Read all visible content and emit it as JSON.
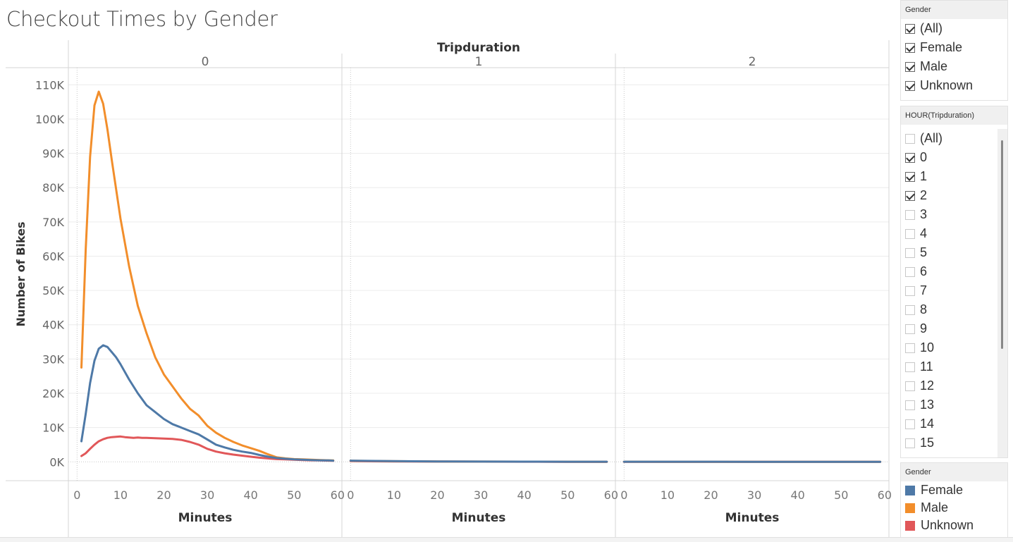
{
  "title": "Checkout Times by Gender",
  "filters": {
    "gender": {
      "header": "Gender",
      "items": [
        {
          "label": "(All)",
          "checked": true
        },
        {
          "label": "Female",
          "checked": true
        },
        {
          "label": "Male",
          "checked": true
        },
        {
          "label": "Unknown",
          "checked": true
        }
      ]
    },
    "hour": {
      "header": "HOUR(Tripduration)",
      "items": [
        {
          "label": "(All)",
          "checked": false
        },
        {
          "label": "0",
          "checked": true
        },
        {
          "label": "1",
          "checked": true
        },
        {
          "label": "2",
          "checked": true
        },
        {
          "label": "3",
          "checked": false
        },
        {
          "label": "4",
          "checked": false
        },
        {
          "label": "5",
          "checked": false
        },
        {
          "label": "6",
          "checked": false
        },
        {
          "label": "7",
          "checked": false
        },
        {
          "label": "8",
          "checked": false
        },
        {
          "label": "9",
          "checked": false
        },
        {
          "label": "10",
          "checked": false
        },
        {
          "label": "11",
          "checked": false
        },
        {
          "label": "12",
          "checked": false
        },
        {
          "label": "13",
          "checked": false
        },
        {
          "label": "14",
          "checked": false
        },
        {
          "label": "15",
          "checked": false
        }
      ]
    }
  },
  "legend": {
    "header": "Gender",
    "items": [
      {
        "label": "Female",
        "color": "#4e79a7"
      },
      {
        "label": "Male",
        "color": "#f28e2b"
      },
      {
        "label": "Unknown",
        "color": "#e15759"
      }
    ]
  },
  "chart_data": {
    "type": "line",
    "title": "Checkout Times by Gender",
    "column_header": "Tripduration",
    "panel_labels": [
      "0",
      "1",
      "2"
    ],
    "xlabel": "Minutes",
    "ylabel": "Number of Bikes",
    "x_ticks": [
      0,
      10,
      20,
      30,
      40,
      50,
      60
    ],
    "y_ticks": [
      0,
      10000,
      20000,
      30000,
      40000,
      50000,
      60000,
      70000,
      80000,
      90000,
      100000,
      110000
    ],
    "y_tick_labels": [
      "0K",
      "10K",
      "20K",
      "30K",
      "40K",
      "50K",
      "60K",
      "70K",
      "80K",
      "90K",
      "100K",
      "110K"
    ],
    "xlim": [
      -2,
      61
    ],
    "ylim": [
      -5500,
      115000
    ],
    "grid": true,
    "legend_position": "right",
    "panels": [
      {
        "label": "0",
        "series": [
          {
            "name": "Female",
            "color": "#4e79a7",
            "x": [
              1,
              2,
              3,
              4,
              5,
              6,
              7,
              8,
              9,
              10,
              12,
              14,
              16,
              18,
              20,
              22,
              24,
              26,
              28,
              30,
              32,
              34,
              36,
              38,
              40,
              42,
              44,
              46,
              48,
              50,
              52,
              54,
              56,
              58,
              59
            ],
            "y": [
              6000,
              14000,
              23000,
              29500,
              33000,
              34000,
              33500,
              32000,
              30500,
              28500,
              24000,
              20000,
              16500,
              14500,
              12500,
              11000,
              10000,
              9000,
              8000,
              6500,
              5000,
              4200,
              3500,
              3000,
              2600,
              2000,
              1500,
              1100,
              900,
              700,
              600,
              500,
              450,
              400,
              350
            ]
          },
          {
            "name": "Male",
            "color": "#f28e2b",
            "x": [
              1,
              2,
              3,
              4,
              5,
              6,
              7,
              8,
              10,
              12,
              14,
              16,
              18,
              20,
              22,
              24,
              26,
              28,
              30,
              32,
              34,
              36,
              38,
              40,
              42,
              44,
              46,
              48,
              50,
              52,
              54,
              56,
              58,
              59
            ],
            "y": [
              27500,
              62000,
              89000,
              104000,
              108000,
              104500,
              97000,
              88000,
              71000,
              57000,
              45500,
              37500,
              30500,
              25500,
              22000,
              18500,
              15500,
              13500,
              10500,
              8500,
              7000,
              5800,
              4800,
              4000,
              3200,
              2200,
              1300,
              1000,
              800,
              700,
              600,
              500,
              450,
              400
            ]
          },
          {
            "name": "Unknown",
            "color": "#e15759",
            "x": [
              1,
              2,
              3,
              4,
              5,
              6,
              7,
              8,
              9,
              10,
              11,
              12,
              13,
              14,
              15,
              16,
              18,
              20,
              22,
              24,
              26,
              28,
              30,
              32,
              34,
              36,
              38,
              40,
              42,
              44,
              46,
              48,
              50,
              52,
              54,
              56,
              58,
              59
            ],
            "y": [
              1700,
              2500,
              3800,
              5000,
              6000,
              6600,
              7000,
              7200,
              7300,
              7400,
              7200,
              7100,
              7000,
              7100,
              7000,
              7000,
              6900,
              6800,
              6700,
              6400,
              5800,
              5000,
              3800,
              3000,
              2500,
              2100,
              1800,
              1500,
              1200,
              1000,
              800,
              700,
              600,
              500,
              450,
              400,
              350,
              300
            ]
          }
        ]
      },
      {
        "label": "1",
        "series": [
          {
            "name": "Female",
            "color": "#4e79a7",
            "x": [
              0,
              10,
              20,
              30,
              40,
              50,
              59
            ],
            "y": [
              350,
              200,
              120,
              80,
              60,
              40,
              30
            ]
          },
          {
            "name": "Male",
            "color": "#f28e2b",
            "x": [
              0,
              10,
              20,
              30,
              40,
              50,
              59
            ],
            "y": [
              300,
              180,
              100,
              70,
              50,
              30,
              20
            ]
          },
          {
            "name": "Unknown",
            "color": "#e15759",
            "x": [
              0,
              10,
              20,
              30,
              40,
              50,
              59
            ],
            "y": [
              200,
              120,
              80,
              50,
              30,
              20,
              10
            ]
          }
        ]
      },
      {
        "label": "2",
        "series": [
          {
            "name": "Female",
            "color": "#4e79a7",
            "x": [
              0,
              10,
              20,
              30,
              40,
              50,
              59
            ],
            "y": [
              40,
              30,
              25,
              20,
              15,
              10,
              10
            ]
          },
          {
            "name": "Male",
            "color": "#f28e2b",
            "x": [
              0,
              10,
              20,
              30,
              40,
              50,
              59
            ],
            "y": [
              30,
              20,
              15,
              10,
              10,
              5,
              5
            ]
          },
          {
            "name": "Unknown",
            "color": "#e15759",
            "x": [
              0,
              10,
              20,
              30,
              40,
              50,
              59
            ],
            "y": [
              20,
              15,
              10,
              5,
              5,
              5,
              0
            ]
          }
        ]
      }
    ]
  }
}
